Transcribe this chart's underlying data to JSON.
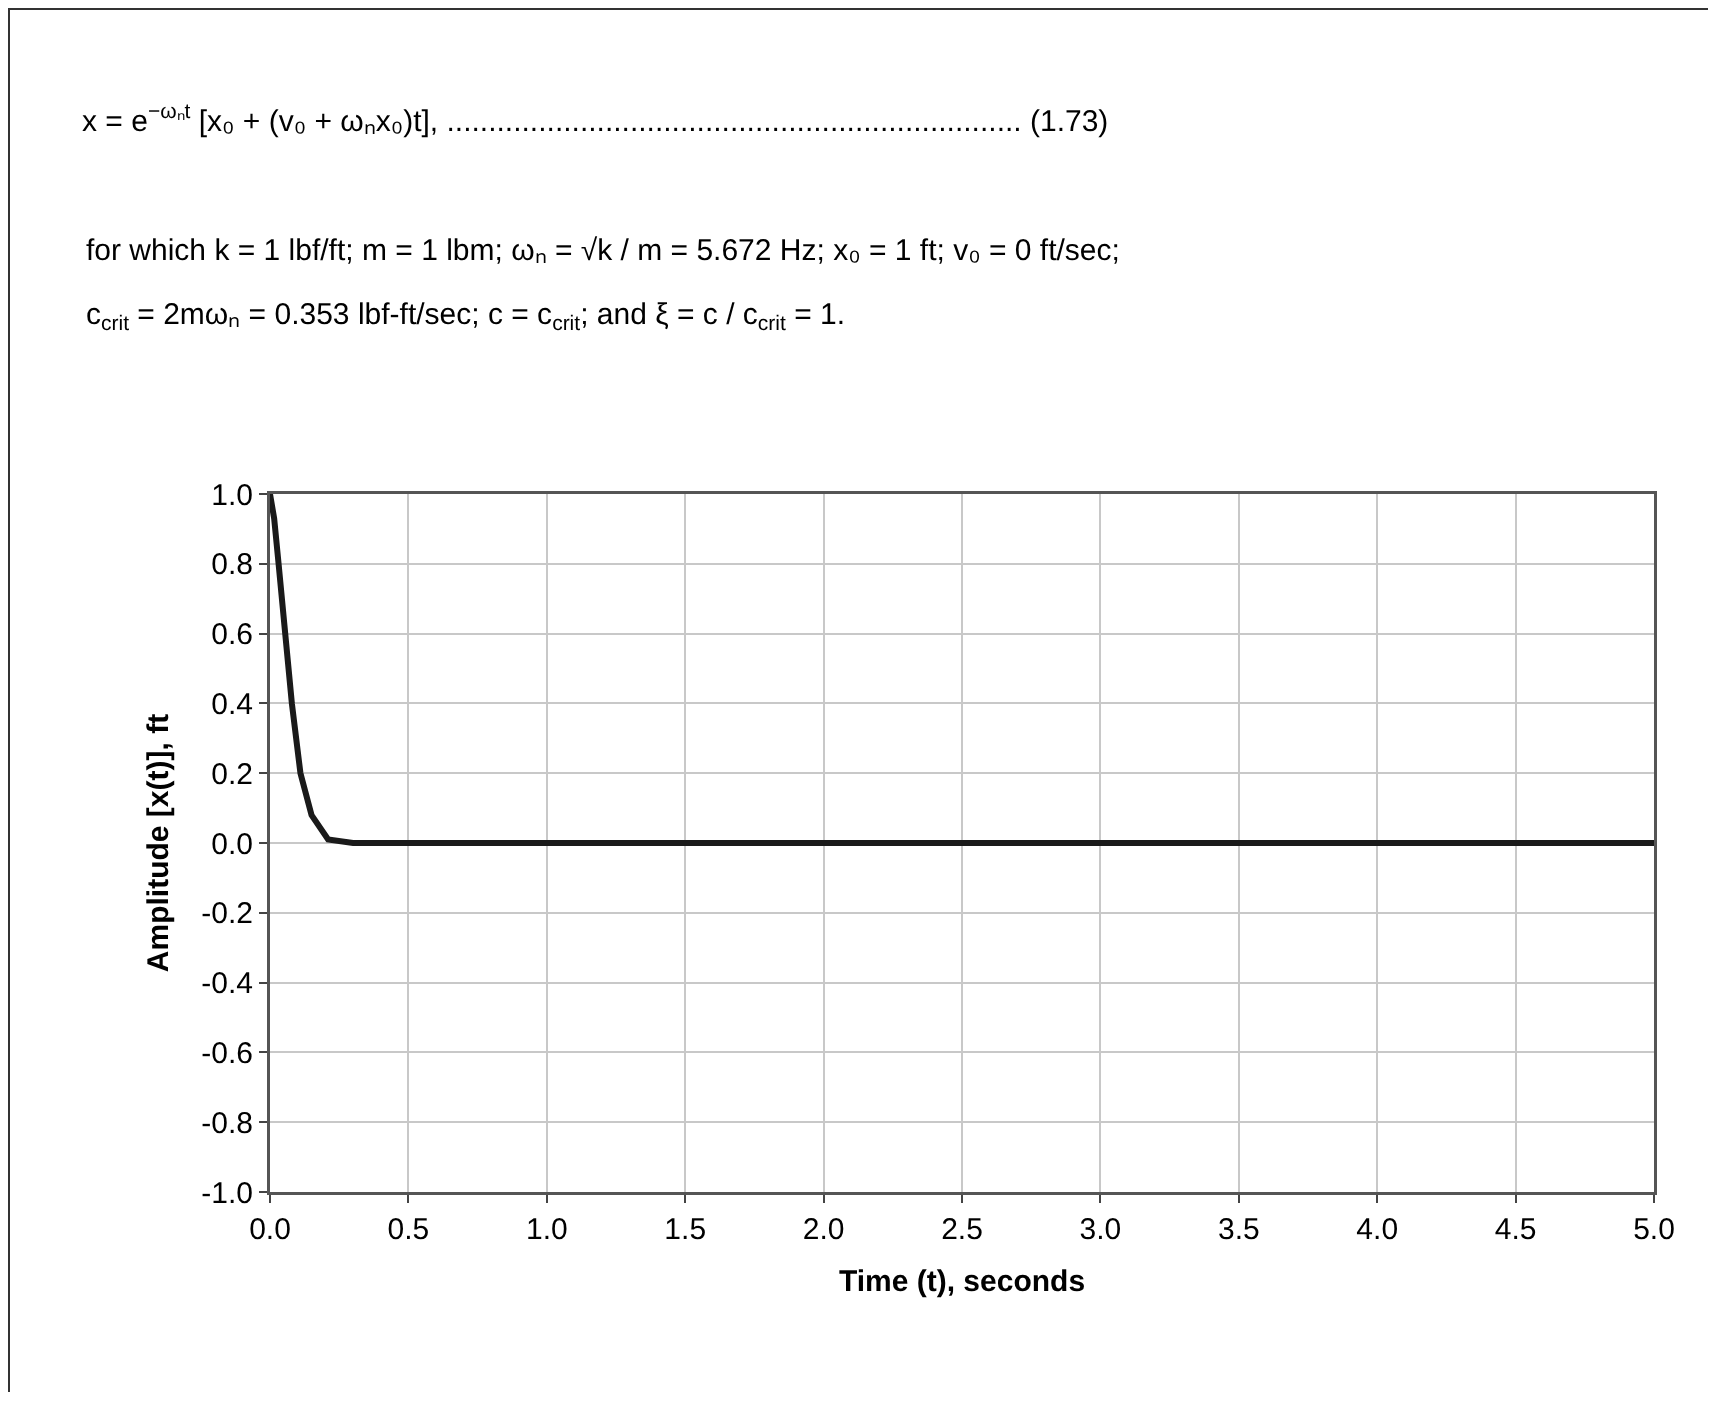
{
  "chart_data": {
    "type": "line",
    "title": "x = e$^{−ωₙt}$ [x₀ + (v₀ + ωₙx₀)t], ..................................................................... (1.73)",
    "annotations": [
      "for which k = 1 lbf/ft; m = 1 lbm; ωₙ = √k / m = 5.672 Hz; x₀ = 1 ft; v₀ = 0 ft/sec;",
      "c$_{crit}$ = 2mωₙ = 0.353 lbf-ft/sec; c = c$_{crit}$; and ξ = c / c$_{crit}$ = 1."
    ],
    "xlabel": "Time (t), seconds",
    "ylabel": "Amplitude [x(t)], ft",
    "x": [
      0,
      0.015,
      0.031,
      0.055,
      0.079,
      0.11,
      0.15,
      0.21,
      0.3,
      5
    ],
    "series": [
      {
        "color": "#1a1a1a",
        "values": [
          1,
          0.93,
          0.8,
          0.6,
          0.4,
          0.2,
          0.08,
          0.01,
          0,
          0
        ]
      }
    ],
    "xlim": [
      0,
      5
    ],
    "xticks": [
      {
        "value": 0,
        "label": "0.0"
      },
      {
        "value": 0.5,
        "label": "0.5"
      },
      {
        "value": 1,
        "label": "1.0"
      },
      {
        "value": 1.5,
        "label": "1.5"
      },
      {
        "value": 2,
        "label": "2.0"
      },
      {
        "value": 2.5,
        "label": "2.5"
      },
      {
        "value": 3,
        "label": "3.0"
      },
      {
        "value": 3.5,
        "label": "3.5"
      },
      {
        "value": 4,
        "label": "4.0"
      },
      {
        "value": 4.5,
        "label": "4.5"
      },
      {
        "value": 5,
        "label": "5.0"
      }
    ],
    "ylim": [
      -1,
      1
    ],
    "yticks": [
      {
        "value": -1,
        "label": "-1.0"
      },
      {
        "value": -0.8,
        "label": "-0.8"
      },
      {
        "value": -0.6,
        "label": "-0.6"
      },
      {
        "value": -0.4,
        "label": "-0.4"
      },
      {
        "value": -0.2,
        "label": "-0.2"
      },
      {
        "value": 0,
        "label": "0.0"
      },
      {
        "value": 0.2,
        "label": "0.2"
      },
      {
        "value": 0.4,
        "label": "0.4"
      },
      {
        "value": 0.6,
        "label": "0.6"
      },
      {
        "value": 0.8,
        "label": "0.8"
      },
      {
        "value": 1,
        "label": "1.0"
      }
    ],
    "grid": true,
    "marker": "none",
    "line_style": "solid"
  }
}
